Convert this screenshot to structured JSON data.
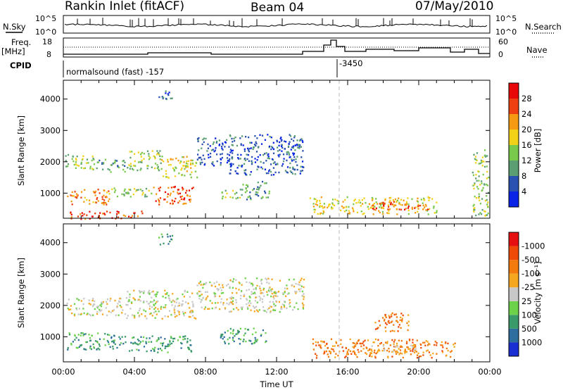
{
  "header": {
    "station": "Rankin Inlet (fitACF)",
    "beam": "Beam 04",
    "date": "07/May/2010"
  },
  "strips": {
    "nsky_label": "N.Sky",
    "nsky_ticks": [
      "10^5",
      "10^0"
    ],
    "nsearch_label": "N.Search",
    "nsearch_ticks": [
      "10^5",
      "10^0"
    ],
    "freq_label_1": "Freq.",
    "freq_label_2": "[MHz]",
    "freq_ticks": [
      "18",
      "8"
    ],
    "nave_label": "Nave",
    "nave_ticks": [
      "60",
      "0"
    ],
    "cpid_label": "CPID",
    "cpid_text_1": "normalsound (fast) -157",
    "cpid_text_2": "-3450"
  },
  "chart_data": [
    {
      "type": "heatmap",
      "title": "",
      "ylabel": "Slant Range [km]",
      "xlabel": "",
      "xlim": [
        0,
        24
      ],
      "ylim": [
        200,
        4600
      ],
      "yticks": [
        1000,
        2000,
        3000,
        4000
      ],
      "ytick_labels": [
        "1000",
        "2000",
        "3000",
        "4000"
      ],
      "colorbar": {
        "label": "Power [dB]",
        "ticks": [
          "4",
          "8",
          "12",
          "16",
          "20",
          "24",
          "28"
        ],
        "colors": [
          "#0b25e6",
          "#2a52b0",
          "#5a9e72",
          "#79c94a",
          "#f2d219",
          "#f59a12",
          "#ee4010",
          "#e80808"
        ]
      },
      "regions": [
        {
          "t0": 0.1,
          "t1": 1.8,
          "r0": 1750,
          "r1": 2250,
          "level": 3
        },
        {
          "t0": 1.8,
          "t1": 3.5,
          "r0": 1700,
          "r1": 2100,
          "level": 2
        },
        {
          "t0": 3.5,
          "t1": 5.5,
          "r0": 1750,
          "r1": 2400,
          "level": 3
        },
        {
          "t0": 5.5,
          "t1": 7.5,
          "r0": 1500,
          "r1": 2200,
          "level": 4
        },
        {
          "t0": 7.5,
          "t1": 9.5,
          "r0": 1900,
          "r1": 2800,
          "level": 1
        },
        {
          "t0": 9.3,
          "t1": 13.5,
          "r0": 1600,
          "r1": 2900,
          "level": 1
        },
        {
          "t0": 0.2,
          "t1": 2.6,
          "r0": 650,
          "r1": 1150,
          "level": 5
        },
        {
          "t0": 2.6,
          "t1": 5.0,
          "r0": 900,
          "r1": 1200,
          "level": 3
        },
        {
          "t0": 5.0,
          "t1": 7.3,
          "r0": 650,
          "r1": 1250,
          "level": 6
        },
        {
          "t0": 8.8,
          "t1": 10.0,
          "r0": 850,
          "r1": 1150,
          "level": 3
        },
        {
          "t0": 10.0,
          "t1": 11.6,
          "r0": 800,
          "r1": 1400,
          "level": 2
        },
        {
          "t0": 13.8,
          "t1": 21.0,
          "r0": 350,
          "r1": 900,
          "level": 4
        },
        {
          "t0": 17.0,
          "t1": 20.5,
          "r0": 500,
          "r1": 750,
          "level": 6
        },
        {
          "t0": 0.3,
          "t1": 4.5,
          "r0": 200,
          "r1": 450,
          "level": 6
        },
        {
          "t0": 5.3,
          "t1": 6.1,
          "r0": 3950,
          "r1": 4300,
          "level": 1
        },
        {
          "t0": 23.0,
          "t1": 23.9,
          "r0": 300,
          "r1": 2400,
          "level": 3
        }
      ]
    },
    {
      "type": "heatmap",
      "title": "",
      "ylabel": "Slant Range [km]",
      "xlabel": "Time UT",
      "xlim": [
        0,
        24
      ],
      "ylim": [
        200,
        4600
      ],
      "xticks": [
        0,
        4,
        8,
        12,
        16,
        20,
        24
      ],
      "xtick_labels": [
        "00:00",
        "04:00",
        "08:00",
        "12:00",
        "16:00",
        "20:00",
        "00:00"
      ],
      "yticks": [
        1000,
        2000,
        3000,
        4000
      ],
      "ytick_labels": [
        "1000",
        "2000",
        "3000",
        "4000"
      ],
      "colorbar": {
        "label": "Velocity [m s⁻¹]",
        "ticks": [
          "1000",
          "500",
          "100",
          "25",
          "-25",
          "-100",
          "-500",
          "-1000"
        ],
        "colors": [
          "#1a2fd1",
          "#2d6e9e",
          "#3a9a6a",
          "#6cd24a",
          "#c8c8c8",
          "#f5a81f",
          "#f37a0c",
          "#f04a08",
          "#e61010"
        ]
      },
      "regions": [
        {
          "t0": 0.1,
          "t1": 3.5,
          "r0": 1700,
          "r1": 2250,
          "level": 4
        },
        {
          "t0": 3.5,
          "t1": 7.5,
          "r0": 1600,
          "r1": 2500,
          "level": 4
        },
        {
          "t0": 7.5,
          "t1": 9.5,
          "r0": 1900,
          "r1": 2800,
          "level": 4
        },
        {
          "t0": 9.3,
          "t1": 13.5,
          "r0": 1800,
          "r1": 2900,
          "level": 4
        },
        {
          "t0": 0.2,
          "t1": 3.5,
          "r0": 600,
          "r1": 1150,
          "level": 2
        },
        {
          "t0": 3.6,
          "t1": 7.2,
          "r0": 500,
          "r1": 1050,
          "level": 2
        },
        {
          "t0": 8.8,
          "t1": 11.5,
          "r0": 800,
          "r1": 1300,
          "level": 2
        },
        {
          "t0": 14.0,
          "t1": 22.0,
          "r0": 350,
          "r1": 950,
          "level": 6
        },
        {
          "t0": 17.0,
          "t1": 20.5,
          "r0": 500,
          "r1": 750,
          "level": 5
        },
        {
          "t0": 17.5,
          "t1": 19.5,
          "r0": 1200,
          "r1": 1800,
          "level": 6
        },
        {
          "t0": 5.3,
          "t1": 6.1,
          "r0": 3950,
          "r1": 4300,
          "level": 2
        }
      ]
    }
  ]
}
